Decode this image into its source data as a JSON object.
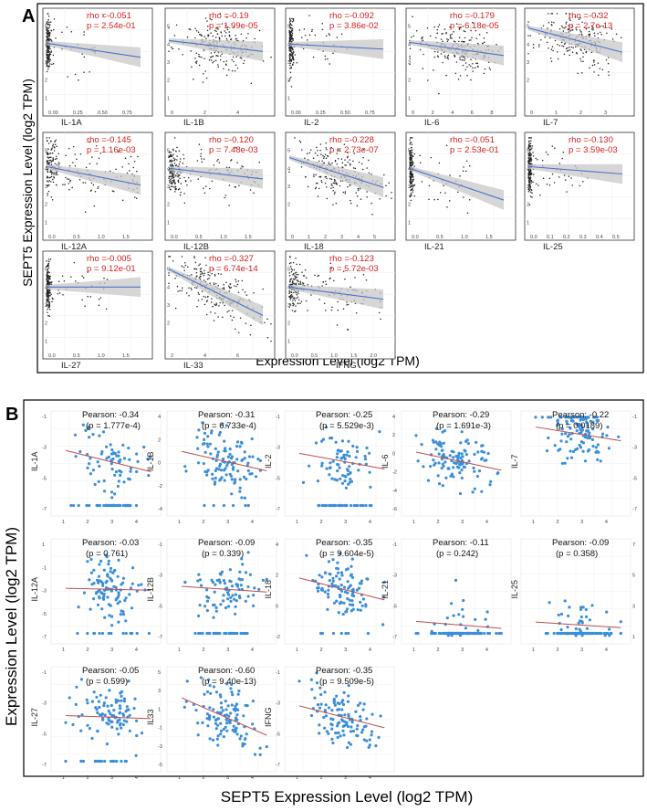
{
  "panel_a": {
    "letter": "A",
    "y_title": "SEPT5 Expression Level (log2 TPM)",
    "x_title": "Expression Level (log2 TPM)",
    "point_color": "#222222",
    "line_color": "#4d6fd1",
    "ci_color": "#c8c8c8",
    "stat_color": "#d42020"
  },
  "panel_b": {
    "letter": "B",
    "y_title": "Expression Level (log2 TPM)",
    "x_title": "SEPT5 Expression Level (log2 TPM)",
    "point_color": "#3b8fd9",
    "line_color": "#c0504d"
  },
  "chart_data": [
    {
      "id": "panel_a",
      "type": "scatter",
      "title": "A",
      "xlabel": "Expression Level (log2 TPM)",
      "ylabel": "SEPT5 Expression Level (log2 TPM)",
      "ylim": [
        0,
        6
      ],
      "subplots": [
        {
          "gene": "IL-1A",
          "rho_text": "rho =-0.051",
          "p_text": "p = 2.54e-01",
          "slope": -0.85,
          "intercept": 4.05,
          "xlim": [
            0,
            1.0
          ],
          "xticks": [
            "0.00",
            "0.25",
            "0.50",
            "0.75"
          ],
          "yticks": [
            "1",
            "2",
            "3",
            "4",
            "5"
          ]
        },
        {
          "gene": "IL-1B",
          "rho_text": "rho =-0.19",
          "p_text": "p = 1.99e-05",
          "slope": -0.11,
          "intercept": 4.2,
          "xlim": [
            0,
            6
          ],
          "xticks": [
            "0",
            "2",
            "4"
          ],
          "yticks": [
            "1",
            "2",
            "3",
            "4",
            "5"
          ]
        },
        {
          "gene": "IL-2",
          "rho_text": "rho =-0.092",
          "p_text": "p = 3.86e-02",
          "slope": -0.3,
          "intercept": 4.0,
          "xlim": [
            0,
            1.0
          ],
          "xticks": [
            "0.00",
            "0.25",
            "0.50",
            "0.75"
          ],
          "yticks": [
            "1",
            "2",
            "3",
            "4",
            "5"
          ]
        },
        {
          "gene": "IL-6",
          "rho_text": "rho =-0.179",
          "p_text": "p = 6.18e-05",
          "slope": -0.1,
          "intercept": 4.1,
          "xlim": [
            0,
            8
          ],
          "xticks": [
            "0",
            "2",
            "4",
            "6",
            "8"
          ],
          "yticks": [
            "1",
            "2",
            "3",
            "4",
            "5"
          ]
        },
        {
          "gene": "IL-7",
          "rho_text": "rho =-0.32",
          "p_text": "p = 2.7e-13",
          "slope": -0.42,
          "intercept": 4.9,
          "xlim": [
            0,
            3.5
          ],
          "xticks": [
            "0",
            "1",
            "2",
            "3"
          ],
          "yticks": [
            "2",
            "3",
            "4",
            "5"
          ]
        },
        {
          "gene": "IL-12A",
          "rho_text": "rho =-0.145",
          "p_text": "p = 1.16e-03",
          "slope": -0.7,
          "intercept": 4.1,
          "xlim": [
            0,
            1.6
          ],
          "xticks": [
            "0.0",
            "0.5",
            "1.0",
            "1.5"
          ],
          "yticks": [
            "1",
            "2",
            "3",
            "4",
            "5"
          ]
        },
        {
          "gene": "IL-12B",
          "rho_text": "rho =-0.120",
          "p_text": "p = 7.48e-03",
          "slope": -0.4,
          "intercept": 4.0,
          "xlim": [
            0,
            1.6
          ],
          "xticks": [
            "0.0",
            "0.5",
            "1.0",
            "1.5"
          ],
          "yticks": [
            "1",
            "2",
            "3",
            "4",
            "5"
          ]
        },
        {
          "gene": "IL-18",
          "rho_text": "rho =-0.228",
          "p_text": "p = 2.73e-07",
          "slope": -0.3,
          "intercept": 4.6,
          "xlim": [
            0,
            6
          ],
          "xticks": [
            "0",
            "1",
            "2",
            "3",
            "4",
            "5"
          ],
          "yticks": [
            "2",
            "3",
            "4",
            "5"
          ]
        },
        {
          "gene": "IL-21",
          "rho_text": "rho =-0.051",
          "p_text": "p = 2.53e-01",
          "slope": -1.2,
          "intercept": 4.0,
          "xlim": [
            0,
            1.6
          ],
          "xticks": [
            "0.0",
            "0.5",
            "1.0",
            "1.5"
          ],
          "yticks": [
            "1",
            "2",
            "3",
            "4",
            "5"
          ]
        },
        {
          "gene": "IL-25",
          "rho_text": "rho =-0.130",
          "p_text": "p = 3.59e-03",
          "slope": -0.9,
          "intercept": 4.1,
          "xlim": [
            0,
            0.5
          ],
          "xticks": [
            "0.0",
            "0.1",
            "0.2",
            "0.3",
            "0.4",
            "0.5"
          ],
          "yticks": [
            "1",
            "2",
            "3",
            "4",
            "5"
          ]
        },
        {
          "gene": "IL-27",
          "rho_text": "rho =-0.005",
          "p_text": "p = 9.12e-01",
          "slope": 0.0,
          "intercept": 4.0,
          "xlim": [
            0,
            1.8
          ],
          "xticks": [
            "0.0",
            "0.5",
            "1.0",
            "1.5"
          ],
          "yticks": [
            "1",
            "2",
            "3",
            "4",
            "5"
          ]
        },
        {
          "gene": "IL-33",
          "rho_text": "rho =-0.327",
          "p_text": "p = 6.74e-14",
          "slope": -0.35,
          "intercept": 5.0,
          "xlim": [
            0,
            8
          ],
          "xticks": [
            "2",
            "4",
            "6"
          ],
          "yticks": [
            "2",
            "3",
            "4",
            "5"
          ]
        },
        {
          "gene": "IFNG",
          "rho_text": "rho =-0.123",
          "p_text": "p = 5.72e-03",
          "slope": -0.35,
          "intercept": 4.0,
          "xlim": [
            0,
            2.1
          ],
          "xticks": [
            "0.0",
            "0.5",
            "1.0",
            "1.5",
            "2.0"
          ],
          "yticks": [
            "1",
            "2",
            "3",
            "4",
            "5"
          ]
        }
      ]
    },
    {
      "id": "panel_b",
      "type": "scatter",
      "title": "B",
      "xlabel": "SEPT5 Expression Level (log2 TPM)",
      "ylabel": "Expression Level (log2 TPM)",
      "xlim": [
        0.5,
        5
      ],
      "subplots": [
        {
          "gene": "IL-1A",
          "pearson_text": "Pearson: -0.34",
          "p_text": "(p = 1.777e-4)",
          "xticks": [
            "1",
            "2",
            "3",
            "4"
          ],
          "yticks": [
            "-1",
            "-3",
            "-5",
            "-7"
          ]
        },
        {
          "gene": "IL-1B",
          "pearson_text": "Pearson: -0.31",
          "p_text": "(p = 6.733e-4)",
          "xticks": [
            "1",
            "2",
            "3",
            "4"
          ],
          "yticks": [
            "4",
            "2",
            "0",
            "-2",
            "-4"
          ]
        },
        {
          "gene": "IL-2",
          "pearson_text": "Pearson: -0.25",
          "p_text": "(p = 5.529e-3)",
          "xticks": [
            "1",
            "2",
            "3",
            "4"
          ],
          "yticks": [
            "-1",
            "-3",
            "-5",
            "-7"
          ]
        },
        {
          "gene": "IL-6",
          "pearson_text": "Pearson: -0.29",
          "p_text": "(p = 1.691e-3)",
          "xticks": [
            "1",
            "2",
            "3",
            "4"
          ],
          "yticks": [
            "4",
            "2",
            "0",
            "-2",
            "-4",
            "-6"
          ]
        },
        {
          "gene": "IL-7",
          "pearson_text": "Pearson: -0.22",
          "p_text": "(p = 0.0189)",
          "xticks": [
            "1",
            "2",
            "3",
            "4"
          ],
          "yticks": [
            "-1",
            "-3",
            "-5",
            "-7"
          ]
        },
        {
          "gene": "IL-12A",
          "pearson_text": "Pearson: -0.03",
          "p_text": "(p = 0.761)",
          "xticks": [
            "1",
            "2",
            "3",
            "4"
          ],
          "yticks": [
            "1",
            "-1",
            "-3",
            "-5",
            "-7"
          ]
        },
        {
          "gene": "IL-12B",
          "pearson_text": "Pearson: -0.09",
          "p_text": "(p = 0.339)",
          "xticks": [
            "1",
            "2",
            "3",
            "4"
          ],
          "yticks": [
            "-1",
            "-3",
            "-5",
            "-7"
          ]
        },
        {
          "gene": "IL-18",
          "pearson_text": "Pearson: -0.35",
          "p_text": "(p = 9.604e-5)",
          "xticks": [
            "1",
            "2",
            "3",
            "4"
          ],
          "yticks": [
            "4",
            "2",
            "0",
            "-2"
          ]
        },
        {
          "gene": "IL-21",
          "pearson_text": "Pearson: -0.11",
          "p_text": "(p = 0.242)",
          "xticks": [
            "1",
            "2",
            "3",
            "4"
          ],
          "yticks": [
            "-1",
            "-3",
            "-5",
            "-7"
          ]
        },
        {
          "gene": "IL-25",
          "pearson_text": "Pearson: -0.09",
          "p_text": "(p = 0.358)",
          "xticks": [
            "1",
            "2",
            "3",
            "4"
          ],
          "yticks": [
            "7",
            "5",
            "3",
            "1"
          ]
        },
        {
          "gene": "IL-27",
          "pearson_text": "Pearson: -0.05",
          "p_text": "(p = 0.599)",
          "xticks": [
            "1",
            "2",
            "3",
            "4"
          ],
          "yticks": [
            "-1",
            "-3",
            "-5",
            "-7"
          ]
        },
        {
          "gene": "IL33",
          "pearson_text": "Pearson: -0.60",
          "p_text": "(p = 9.40e-13)",
          "xticks": [
            "1",
            "2",
            "3",
            "4"
          ],
          "yticks": [
            "5",
            "3",
            "1",
            "-1",
            "-3",
            "-5"
          ]
        },
        {
          "gene": "IFNG",
          "pearson_text": "Pearson: -0.35",
          "p_text": "(p = 9.509e-5)",
          "xticks": [
            "1",
            "2",
            "3",
            "4"
          ],
          "yticks": [
            "-1",
            "-3",
            "-5",
            "-7"
          ]
        }
      ]
    }
  ]
}
